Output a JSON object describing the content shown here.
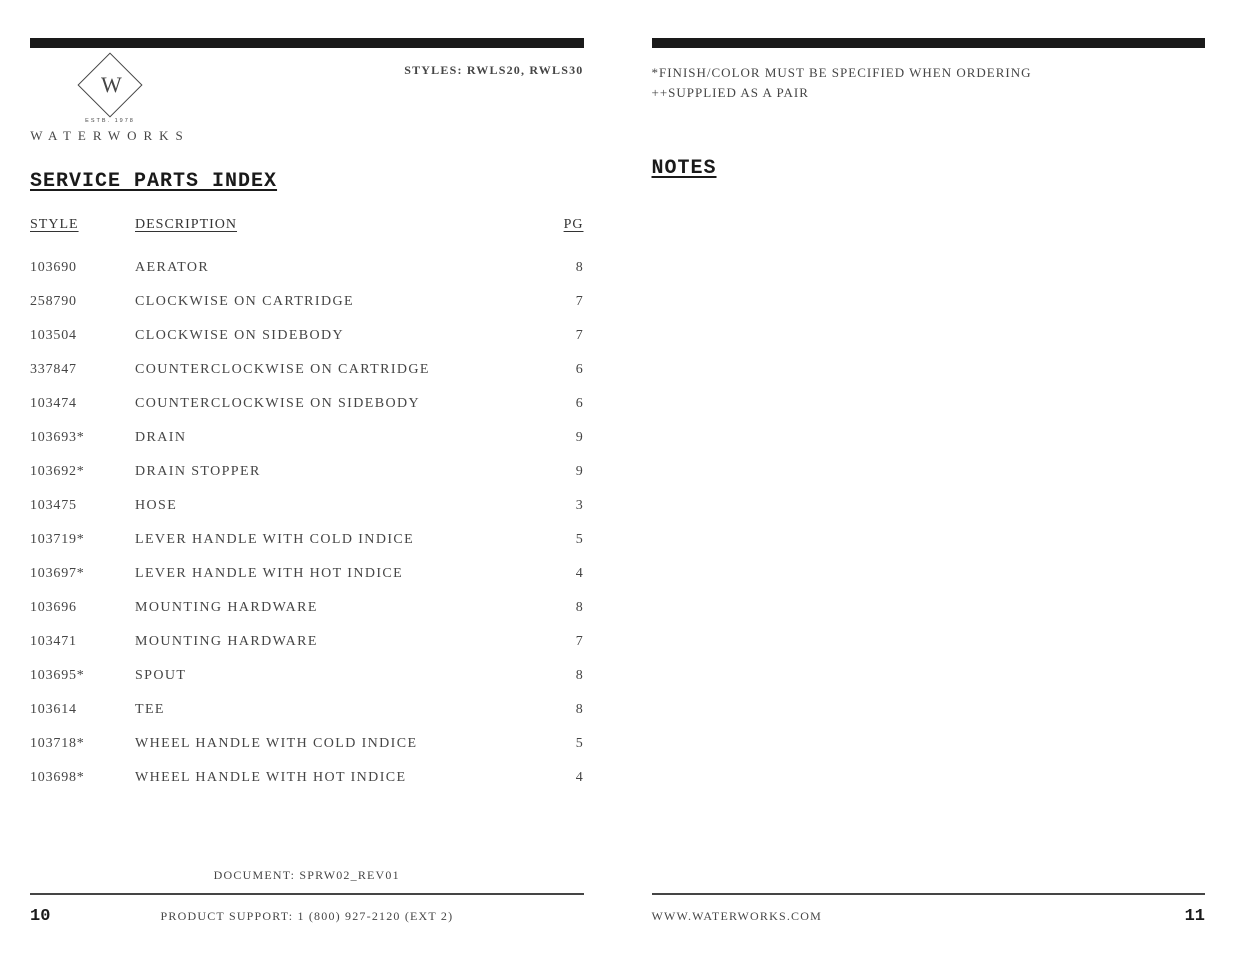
{
  "left": {
    "logo": {
      "monogram": "W",
      "estb": "ESTB. 1978",
      "brand": "WATERWORKS"
    },
    "styles_prefix": "STYLES: ",
    "styles_value": "RWLS20, RWLS30",
    "section_title": "SERVICE PARTS INDEX",
    "table": {
      "headers": {
        "style": "STYLE",
        "description": "DESCRIPTION",
        "pg": "PG"
      },
      "rows": [
        {
          "style": "103690",
          "description": "AERATOR",
          "pg": "8"
        },
        {
          "style": "258790",
          "description": "CLOCKWISE ON CARTRIDGE",
          "pg": "7"
        },
        {
          "style": "103504",
          "description": "CLOCKWISE ON SIDEBODY",
          "pg": "7"
        },
        {
          "style": "337847",
          "description": "COUNTERCLOCKWISE ON CARTRIDGE",
          "pg": "6"
        },
        {
          "style": "103474",
          "description": "COUNTERCLOCKWISE ON SIDEBODY",
          "pg": "6"
        },
        {
          "style": "103693*",
          "description": "DRAIN",
          "pg": "9"
        },
        {
          "style": "103692*",
          "description": "DRAIN STOPPER",
          "pg": "9"
        },
        {
          "style": "103475",
          "description": "HOSE",
          "pg": "3"
        },
        {
          "style": "103719*",
          "description": "LEVER HANDLE WITH COLD INDICE",
          "pg": "5"
        },
        {
          "style": "103697*",
          "description": "LEVER HANDLE WITH HOT INDICE",
          "pg": "4"
        },
        {
          "style": "103696",
          "description": "MOUNTING HARDWARE",
          "pg": "8"
        },
        {
          "style": "103471",
          "description": "MOUNTING HARDWARE",
          "pg": "7"
        },
        {
          "style": "103695*",
          "description": "SPOUT",
          "pg": "8"
        },
        {
          "style": "103614",
          "description": "TEE",
          "pg": "8"
        },
        {
          "style": "103718*",
          "description": "WHEEL HANDLE WITH COLD INDICE",
          "pg": "5"
        },
        {
          "style": "103698*",
          "description": "WHEEL HANDLE WITH HOT INDICE",
          "pg": "4"
        }
      ]
    },
    "document_label": "DOCUMENT: SPRW02_REV01",
    "footer": {
      "page": "10",
      "support": "PRODUCT SUPPORT: 1 (800) 927-2120 (EXT 2)"
    }
  },
  "right": {
    "notes_line1": "*FINISH/COLOR MUST BE SPECIFIED WHEN ORDERING",
    "notes_line2": "++SUPPLIED AS A PAIR",
    "section_title": "NOTES",
    "footer": {
      "url": "WWW.WATERWORKS.COM",
      "page": "11"
    }
  },
  "style": {
    "bar_color": "#1a1a1a",
    "text_color": "#454545",
    "background": "#ffffff",
    "title_font": "Courier New",
    "body_font": "Georgia"
  }
}
